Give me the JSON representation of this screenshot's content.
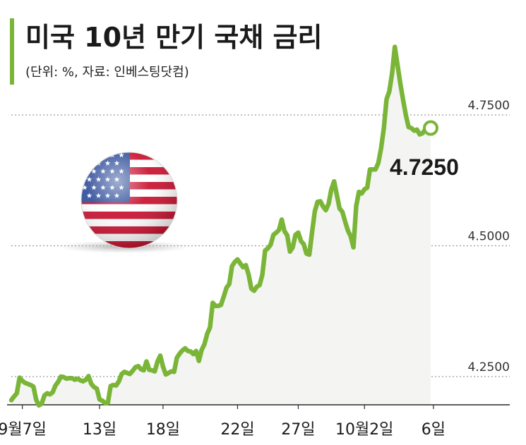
{
  "title": "미국 10년 만기 국채 금리",
  "subtitle": "(단위: %, 자료: 인베스팅닷컴)",
  "colors": {
    "line": "#7ab538",
    "area": "#f4f4f2",
    "gridline": "#9a9a9a",
    "text": "#1a1a1a",
    "flag_red": "#c8102e",
    "flag_blue": "#2f4d9a"
  },
  "chart_data": {
    "type": "line",
    "title": "미국 10년 만기 국채 금리",
    "xlabel": "",
    "ylabel": "",
    "ylim": [
      4.18,
      4.91
    ],
    "yticks": [
      {
        "value": 4.25,
        "label": "4.2500"
      },
      {
        "value": 4.5,
        "label": "4.5000"
      },
      {
        "value": 4.75,
        "label": "4.7500"
      }
    ],
    "xticks": [
      {
        "index": 4,
        "label": "9월7일"
      },
      {
        "index": 32,
        "label": "13일"
      },
      {
        "index": 55,
        "label": "18일"
      },
      {
        "index": 82,
        "label": "22일"
      },
      {
        "index": 104,
        "label": "27일"
      },
      {
        "index": 128,
        "label": "10월2일"
      },
      {
        "index": 153,
        "label": "6일"
      }
    ],
    "last_value_label": "4.7250",
    "icons": [
      "us-flag-icon"
    ],
    "series": [
      {
        "values": [
          4.205,
          4.212,
          4.218,
          4.248,
          4.242,
          4.238,
          4.236,
          4.234,
          4.231,
          4.206,
          4.195,
          4.198,
          4.214,
          4.218,
          4.216,
          4.22,
          4.233,
          4.24,
          4.25,
          4.249,
          4.246,
          4.247,
          4.247,
          4.244,
          4.246,
          4.243,
          4.241,
          4.244,
          4.251,
          4.236,
          4.23,
          4.227,
          4.206,
          4.204,
          4.199,
          4.2,
          4.232,
          4.234,
          4.233,
          4.241,
          4.255,
          4.259,
          4.257,
          4.255,
          4.261,
          4.268,
          4.27,
          4.264,
          4.262,
          4.279,
          4.263,
          4.262,
          4.26,
          4.279,
          4.29,
          4.269,
          4.254,
          4.257,
          4.26,
          4.259,
          4.286,
          4.294,
          4.3,
          4.304,
          4.299,
          4.298,
          4.293,
          4.299,
          4.28,
          4.301,
          4.312,
          4.332,
          4.344,
          4.391,
          4.385,
          4.385,
          4.387,
          4.403,
          4.42,
          4.427,
          4.461,
          4.469,
          4.474,
          4.466,
          4.459,
          4.463,
          4.445,
          4.418,
          4.414,
          4.422,
          4.425,
          4.445,
          4.491,
          4.495,
          4.502,
          4.521,
          4.525,
          4.53,
          4.55,
          4.528,
          4.52,
          4.489,
          4.497,
          4.521,
          4.525,
          4.509,
          4.503,
          4.485,
          4.483,
          4.526,
          4.566,
          4.584,
          4.585,
          4.575,
          4.568,
          4.58,
          4.608,
          4.623,
          4.597,
          4.571,
          4.565,
          4.546,
          4.529,
          4.518,
          4.497,
          4.576,
          4.603,
          4.6,
          4.608,
          4.611,
          4.646,
          4.646,
          4.646,
          4.658,
          4.686,
          4.724,
          4.78,
          4.795,
          4.829,
          4.88,
          4.845,
          4.81,
          4.779,
          4.75,
          4.727,
          4.725,
          4.72,
          4.722,
          4.713,
          4.715,
          4.722,
          4.73,
          4.725
        ]
      }
    ]
  }
}
